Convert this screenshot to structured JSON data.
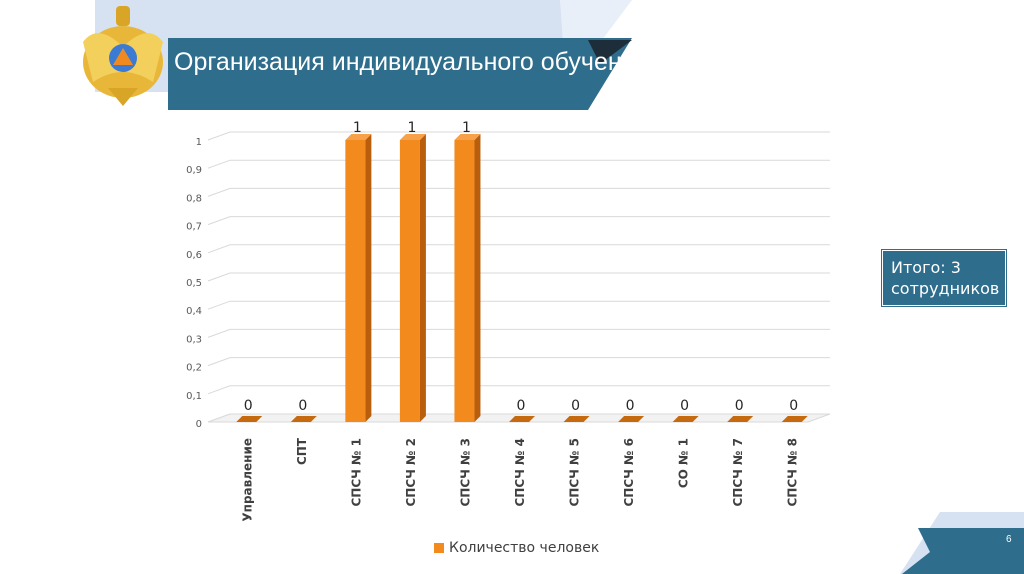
{
  "slide": {
    "title": "Организация индивидуального обучения",
    "total_label": "Итого: 3 сотрудников",
    "page_number": "6"
  },
  "colors": {
    "header_blue": "#2e6d8c",
    "light_blue": "#c9d9ec",
    "bar_orange": "#f28a1e",
    "bar_dark": "#b85e0c"
  },
  "chart_data": {
    "type": "bar",
    "categories": [
      "Управление",
      "СПТ",
      "СПСЧ № 1",
      "СПСЧ № 2",
      "СПСЧ № 3",
      "СПСЧ № 4",
      "СПСЧ № 5",
      "СПСЧ № 6",
      "СО № 1",
      "СПСЧ № 7",
      "СПСЧ № 8"
    ],
    "series": [
      {
        "name": "Количество человек",
        "values": [
          0,
          0,
          1,
          1,
          1,
          0,
          0,
          0,
          0,
          0,
          0
        ]
      }
    ],
    "data_labels": [
      "0",
      "0",
      "1",
      "1",
      "1",
      "0",
      "0",
      "0",
      "0",
      "0",
      "0"
    ],
    "yticks": [
      "0",
      "0,1",
      "0,2",
      "0,3",
      "0,4",
      "0,5",
      "0,6",
      "0,7",
      "0,8",
      "0,9",
      "1"
    ],
    "ylim": [
      0,
      1
    ],
    "grid": true,
    "legend_position": "bottom"
  }
}
